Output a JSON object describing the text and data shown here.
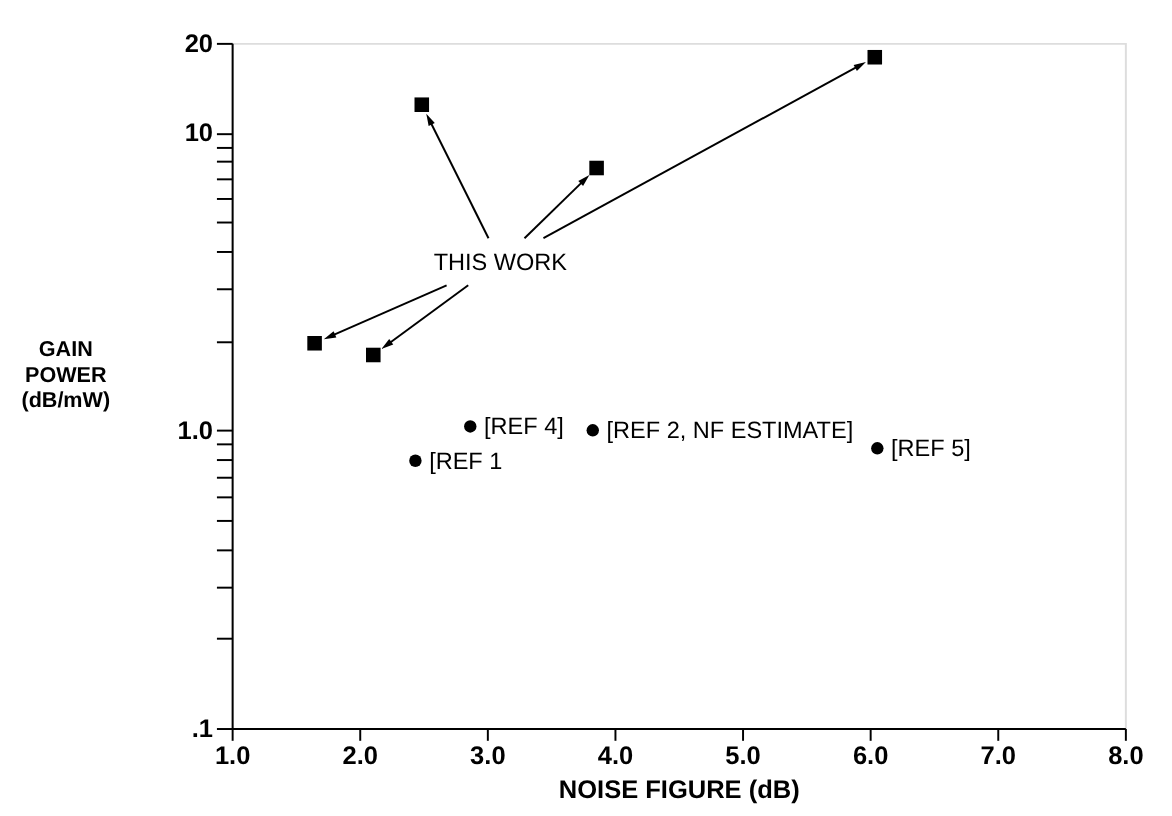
{
  "chart_data": {
    "type": "scatter",
    "xlabel": "NOISE FIGURE (dB)",
    "ylabel": "GAIN\nPOWER\n(dB/mW)",
    "log": true,
    "grid": false,
    "xlim": [
      1.0,
      8.0
    ],
    "xticks": [
      {
        "value": 1,
        "label": "1.0"
      },
      {
        "value": 2,
        "label": "2.0"
      },
      {
        "value": 3,
        "label": "3.0"
      },
      {
        "value": 4,
        "label": "4.0"
      },
      {
        "value": 5,
        "label": "5.0"
      },
      {
        "value": 6,
        "label": "6.0"
      },
      {
        "value": 7,
        "label": "7.0"
      },
      {
        "value": 8,
        "label": "8.0"
      }
    ],
    "ylim": [
      0.1,
      20
    ],
    "yticks": [
      {
        "value": 0.1,
        "label": ".1"
      },
      {
        "value": 0.2,
        "label": null
      },
      {
        "value": 0.3,
        "label": null
      },
      {
        "value": 0.4,
        "label": null
      },
      {
        "value": 0.5,
        "label": null
      },
      {
        "value": 0.6,
        "label": null
      },
      {
        "value": 0.7,
        "label": null
      },
      {
        "value": 0.8,
        "label": null
      },
      {
        "value": 0.9,
        "label": null
      },
      {
        "value": 1,
        "label": "1.0"
      },
      {
        "value": 2,
        "label": null
      },
      {
        "value": 3,
        "label": null
      },
      {
        "value": 4,
        "label": null
      },
      {
        "value": 5,
        "label": null
      },
      {
        "value": 6,
        "label": null
      },
      {
        "value": 7,
        "label": null
      },
      {
        "value": 8,
        "label": null
      },
      {
        "value": 9,
        "label": null
      },
      10,
      20
    ],
    "series": [
      {
        "marker": "square",
        "color": "#000000",
        "x": [
          2.49,
          3.86,
          6.04,
          1.65,
          2.11
        ],
        "values": [
          12.4,
          7.6,
          17.9,
          1.96,
          1.79
        ]
      },
      {
        "marker": "circle",
        "color": "#000000",
        "x": [
          2.44,
          2.87,
          3.83,
          6.06
        ],
        "values": [
          0.79,
          1.03,
          1.0,
          0.87
        ]
      }
    ],
    "annotations": [
      {
        "text": "THIS WORK",
        "x": 2.49,
        "y": 12.4
      },
      {
        "text": "[REF 1",
        "x": 2.44,
        "y": 0.79
      },
      {
        "text": "[REF 4]",
        "x": 2.87,
        "y": 1.03
      },
      {
        "text": "[REF 2, NF ESTIMATE]",
        "x": 3.83,
        "y": 1.0
      },
      {
        "text": "[REF 5]",
        "x": 6.06,
        "y": 0.87
      }
    ]
  }
}
